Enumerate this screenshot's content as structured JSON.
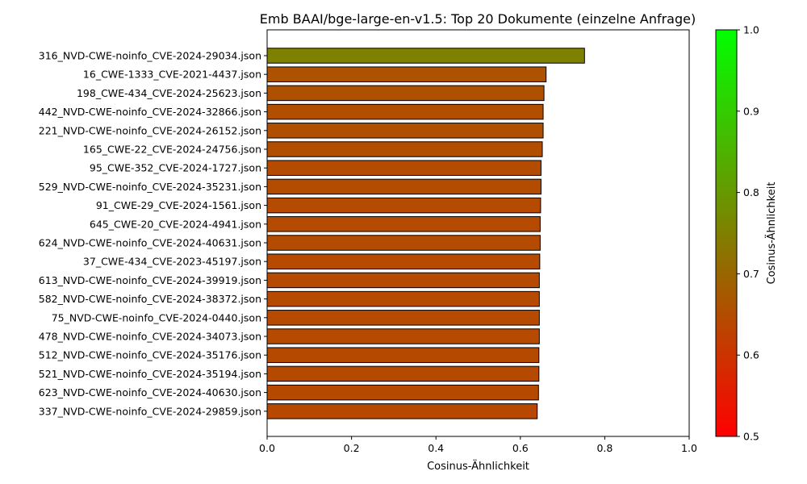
{
  "chart_data": {
    "type": "bar",
    "orientation": "horizontal",
    "title": "Emb BAAI/bge-large-en-v1.5: Top 20 Dokumente (einzelne Anfrage)",
    "xlabel": "Cosinus-Ähnlichkeit",
    "ylabel": "",
    "xlim": [
      0,
      1.0
    ],
    "xticks": [
      "0.0",
      "0.2",
      "0.4",
      "0.6",
      "0.8",
      "1.0"
    ],
    "grid": false,
    "categories": [
      "316_NVD-CWE-noinfo_CVE-2024-29034.json",
      "16_CWE-1333_CVE-2021-4437.json",
      "198_CWE-434_CVE-2024-25623.json",
      "442_NVD-CWE-noinfo_CVE-2024-32866.json",
      "221_NVD-CWE-noinfo_CVE-2024-26152.json",
      "165_CWE-22_CVE-2024-24756.json",
      "95_CWE-352_CVE-2024-1727.json",
      "529_NVD-CWE-noinfo_CVE-2024-35231.json",
      "91_CWE-29_CVE-2024-1561.json",
      "645_CWE-20_CVE-2024-4941.json",
      "624_NVD-CWE-noinfo_CVE-2024-40631.json",
      "37_CWE-434_CVE-2023-45197.json",
      "613_NVD-CWE-noinfo_CVE-2024-39919.json",
      "582_NVD-CWE-noinfo_CVE-2024-38372.json",
      "75_NVD-CWE-noinfo_CVE-2024-0440.json",
      "478_NVD-CWE-noinfo_CVE-2024-34073.json",
      "512_NVD-CWE-noinfo_CVE-2024-35176.json",
      "521_NVD-CWE-noinfo_CVE-2024-35194.json",
      "623_NVD-CWE-noinfo_CVE-2024-40630.json",
      "337_NVD-CWE-noinfo_CVE-2024-29859.json"
    ],
    "values": [
      0.752,
      0.661,
      0.656,
      0.654,
      0.654,
      0.652,
      0.649,
      0.649,
      0.648,
      0.647,
      0.647,
      0.646,
      0.645,
      0.645,
      0.645,
      0.645,
      0.644,
      0.644,
      0.643,
      0.64
    ],
    "colorbar": {
      "label": "Cosinus-Ähnlichkeit",
      "range": [
        0.5,
        1.0
      ],
      "ticks": [
        "0.5",
        "0.6",
        "0.7",
        "0.8",
        "0.9",
        "1.0"
      ],
      "color_low": "#ff0000",
      "color_high": "#00ff00"
    }
  }
}
